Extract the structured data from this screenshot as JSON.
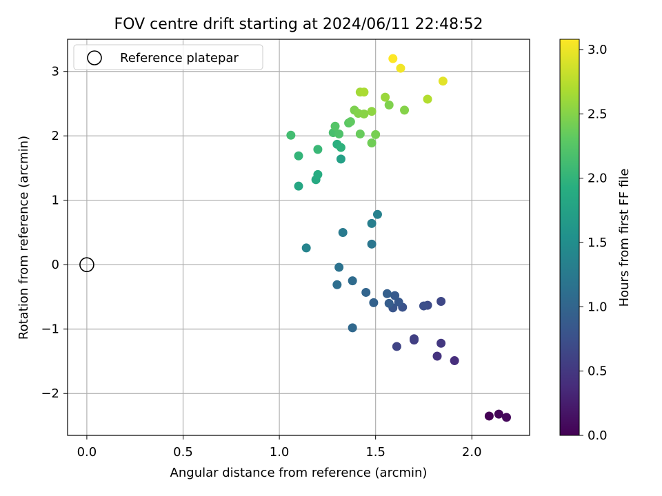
{
  "chart_data": {
    "type": "scatter",
    "title": "FOV centre drift starting at 2024/06/11 22:48:52",
    "xlabel": "Angular distance from reference (arcmin)",
    "ylabel": "Rotation from reference (arcmin)",
    "xlim": [
      -0.1,
      2.3
    ],
    "ylim": [
      -2.65,
      3.5
    ],
    "xticks": [
      0.0,
      0.5,
      1.0,
      1.5,
      2.0
    ],
    "xtick_labels": [
      "0.0",
      "0.5",
      "1.0",
      "1.5",
      "2.0"
    ],
    "yticks": [
      -2,
      -1,
      0,
      1,
      2,
      3
    ],
    "ytick_labels": [
      "−2",
      "−1",
      "0",
      "1",
      "2",
      "3"
    ],
    "grid": true,
    "legend": {
      "position": "top-left",
      "entries": [
        {
          "label": "Reference platepar",
          "marker": "open-circle"
        }
      ]
    },
    "reference_point": {
      "x": 0.0,
      "y": 0.0
    },
    "colorbar": {
      "label": "Hours from first FF file",
      "colormap": "viridis",
      "range": [
        0.0,
        3.08
      ],
      "ticks": [
        0.0,
        0.5,
        1.0,
        1.5,
        2.0,
        2.5,
        3.0
      ],
      "tick_labels": [
        "0.0",
        "0.5",
        "1.0",
        "1.5",
        "2.0",
        "2.5",
        "3.0"
      ]
    },
    "points": [
      {
        "x": 2.09,
        "y": -2.35,
        "c": 0.0
      },
      {
        "x": 2.14,
        "y": -2.32,
        "c": 0.04
      },
      {
        "x": 2.18,
        "y": -2.37,
        "c": 0.07
      },
      {
        "x": 1.91,
        "y": -1.49,
        "c": 0.4
      },
      {
        "x": 1.82,
        "y": -1.42,
        "c": 0.45
      },
      {
        "x": 1.84,
        "y": -1.22,
        "c": 0.5
      },
      {
        "x": 1.7,
        "y": -1.17,
        "c": 0.55
      },
      {
        "x": 1.7,
        "y": -1.15,
        "c": 0.58
      },
      {
        "x": 1.61,
        "y": -1.27,
        "c": 0.62
      },
      {
        "x": 1.84,
        "y": -0.57,
        "c": 0.66
      },
      {
        "x": 1.77,
        "y": -0.63,
        "c": 0.7
      },
      {
        "x": 1.75,
        "y": -0.64,
        "c": 0.74
      },
      {
        "x": 1.64,
        "y": -0.66,
        "c": 0.78
      },
      {
        "x": 1.59,
        "y": -0.67,
        "c": 0.81
      },
      {
        "x": 1.62,
        "y": -0.58,
        "c": 0.84
      },
      {
        "x": 1.6,
        "y": -0.48,
        "c": 0.87
      },
      {
        "x": 1.57,
        "y": -0.6,
        "c": 0.9
      },
      {
        "x": 1.56,
        "y": -0.45,
        "c": 0.93
      },
      {
        "x": 1.49,
        "y": -0.59,
        "c": 0.96
      },
      {
        "x": 1.45,
        "y": -0.43,
        "c": 1.0
      },
      {
        "x": 1.38,
        "y": -0.98,
        "c": 1.03
      },
      {
        "x": 1.38,
        "y": -0.25,
        "c": 1.07
      },
      {
        "x": 1.3,
        "y": -0.31,
        "c": 1.11
      },
      {
        "x": 1.31,
        "y": -0.04,
        "c": 1.15
      },
      {
        "x": 1.48,
        "y": 0.32,
        "c": 1.2
      },
      {
        "x": 1.33,
        "y": 0.5,
        "c": 1.25
      },
      {
        "x": 1.48,
        "y": 0.64,
        "c": 1.3
      },
      {
        "x": 1.51,
        "y": 0.78,
        "c": 1.34
      },
      {
        "x": 1.14,
        "y": 0.26,
        "c": 1.38
      },
      {
        "x": 1.32,
        "y": 1.64,
        "c": 1.74
      },
      {
        "x": 1.1,
        "y": 1.22,
        "c": 1.82
      },
      {
        "x": 1.19,
        "y": 1.32,
        "c": 1.86
      },
      {
        "x": 1.2,
        "y": 1.4,
        "c": 1.9
      },
      {
        "x": 1.3,
        "y": 1.87,
        "c": 1.94
      },
      {
        "x": 1.32,
        "y": 1.82,
        "c": 1.97
      },
      {
        "x": 1.1,
        "y": 1.69,
        "c": 2.01
      },
      {
        "x": 1.2,
        "y": 1.79,
        "c": 2.05
      },
      {
        "x": 1.06,
        "y": 2.01,
        "c": 2.12
      },
      {
        "x": 1.28,
        "y": 2.05,
        "c": 2.16
      },
      {
        "x": 1.31,
        "y": 2.03,
        "c": 2.2
      },
      {
        "x": 1.29,
        "y": 2.15,
        "c": 2.24
      },
      {
        "x": 1.36,
        "y": 2.2,
        "c": 2.28
      },
      {
        "x": 1.37,
        "y": 2.22,
        "c": 2.32
      },
      {
        "x": 1.42,
        "y": 2.03,
        "c": 2.36
      },
      {
        "x": 1.48,
        "y": 1.89,
        "c": 2.4
      },
      {
        "x": 1.5,
        "y": 2.02,
        "c": 2.43
      },
      {
        "x": 1.39,
        "y": 2.4,
        "c": 2.46
      },
      {
        "x": 1.41,
        "y": 2.35,
        "c": 2.49
      },
      {
        "x": 1.44,
        "y": 2.34,
        "c": 2.52
      },
      {
        "x": 1.48,
        "y": 2.38,
        "c": 2.55
      },
      {
        "x": 1.57,
        "y": 2.48,
        "c": 2.47
      },
      {
        "x": 1.65,
        "y": 2.4,
        "c": 2.5
      },
      {
        "x": 1.55,
        "y": 2.6,
        "c": 2.6
      },
      {
        "x": 1.42,
        "y": 2.68,
        "c": 2.64
      },
      {
        "x": 1.44,
        "y": 2.68,
        "c": 2.68
      },
      {
        "x": 1.77,
        "y": 2.57,
        "c": 2.72
      },
      {
        "x": 1.85,
        "y": 2.85,
        "c": 2.95
      },
      {
        "x": 1.63,
        "y": 3.05,
        "c": 3.02
      },
      {
        "x": 1.59,
        "y": 3.2,
        "c": 3.08
      }
    ]
  }
}
